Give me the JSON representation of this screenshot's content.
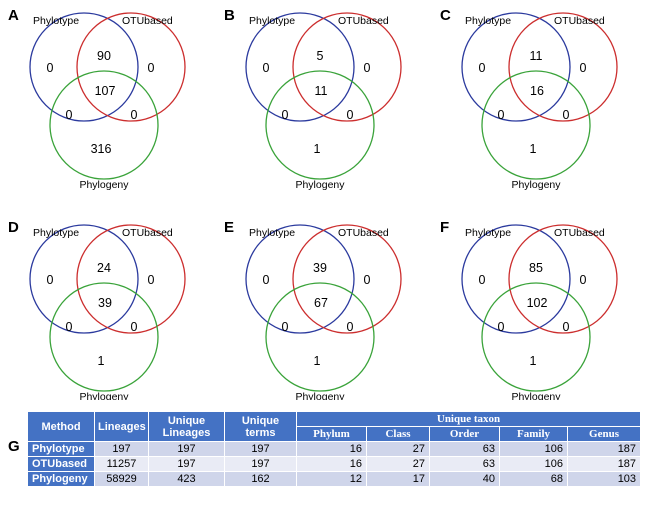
{
  "panels": [
    {
      "letter": "A",
      "set_labels": [
        "Phylotype",
        "OTUbased",
        "Phylogeny"
      ],
      "only_a": "0",
      "only_b": "0",
      "only_c": "316",
      "ab": "90",
      "ac": "0",
      "bc": "0",
      "abc": "107"
    },
    {
      "letter": "B",
      "set_labels": [
        "Phylotype",
        "OTUbased",
        "Phylogeny"
      ],
      "only_a": "0",
      "only_b": "0",
      "only_c": "1",
      "ab": "5",
      "ac": "0",
      "bc": "0",
      "abc": "11"
    },
    {
      "letter": "C",
      "set_labels": [
        "Phylotype",
        "OTUbased",
        "Phylogeny"
      ],
      "only_a": "0",
      "only_b": "0",
      "only_c": "1",
      "ab": "11",
      "ac": "0",
      "bc": "0",
      "abc": "16"
    },
    {
      "letter": "D",
      "set_labels": [
        "Phylotype",
        "OTUbased",
        "Phylogeny"
      ],
      "only_a": "0",
      "only_b": "0",
      "only_c": "1",
      "ab": "24",
      "ac": "0",
      "bc": "0",
      "abc": "39"
    },
    {
      "letter": "E",
      "set_labels": [
        "Phylotype",
        "OTUbased",
        "Phylogeny"
      ],
      "only_a": "0",
      "only_b": "0",
      "only_c": "1",
      "ab": "39",
      "ac": "0",
      "bc": "0",
      "abc": "67"
    },
    {
      "letter": "F",
      "set_labels": [
        "Phylotype",
        "OTUbased",
        "Phylogeny"
      ],
      "only_a": "0",
      "only_b": "0",
      "only_c": "1",
      "ab": "85",
      "ac": "0",
      "bc": "0",
      "abc": "102"
    }
  ],
  "colors": {
    "set_a": "#2b3a9e",
    "set_b": "#cc2e2e",
    "set_c": "#3aa33a",
    "table_header": "#4472c4",
    "row_odd": "#cfd5ea",
    "row_even": "#e9ebf5"
  },
  "table": {
    "letter": "G",
    "headers": {
      "method": "Method",
      "lineages": "Lineages",
      "unique_lineages": "Unique Lineages",
      "unique_terms": "Unique terms",
      "unique_taxon": "Unique taxon"
    },
    "taxon_levels": [
      "Phylum",
      "Class",
      "Order",
      "Family",
      "Genus"
    ],
    "rows": [
      {
        "method": "Phylotype",
        "lineages": "197",
        "unique_lineages": "197",
        "unique_terms": "197",
        "taxon": [
          "16",
          "27",
          "63",
          "106",
          "187"
        ]
      },
      {
        "method": "OTUbased",
        "lineages": "11257",
        "unique_lineages": "197",
        "unique_terms": "197",
        "taxon": [
          "16",
          "27",
          "63",
          "106",
          "187"
        ]
      },
      {
        "method": "Phylogeny",
        "lineages": "58929",
        "unique_lineages": "423",
        "unique_terms": "162",
        "taxon": [
          "12",
          "17",
          "40",
          "68",
          "103"
        ]
      }
    ]
  }
}
